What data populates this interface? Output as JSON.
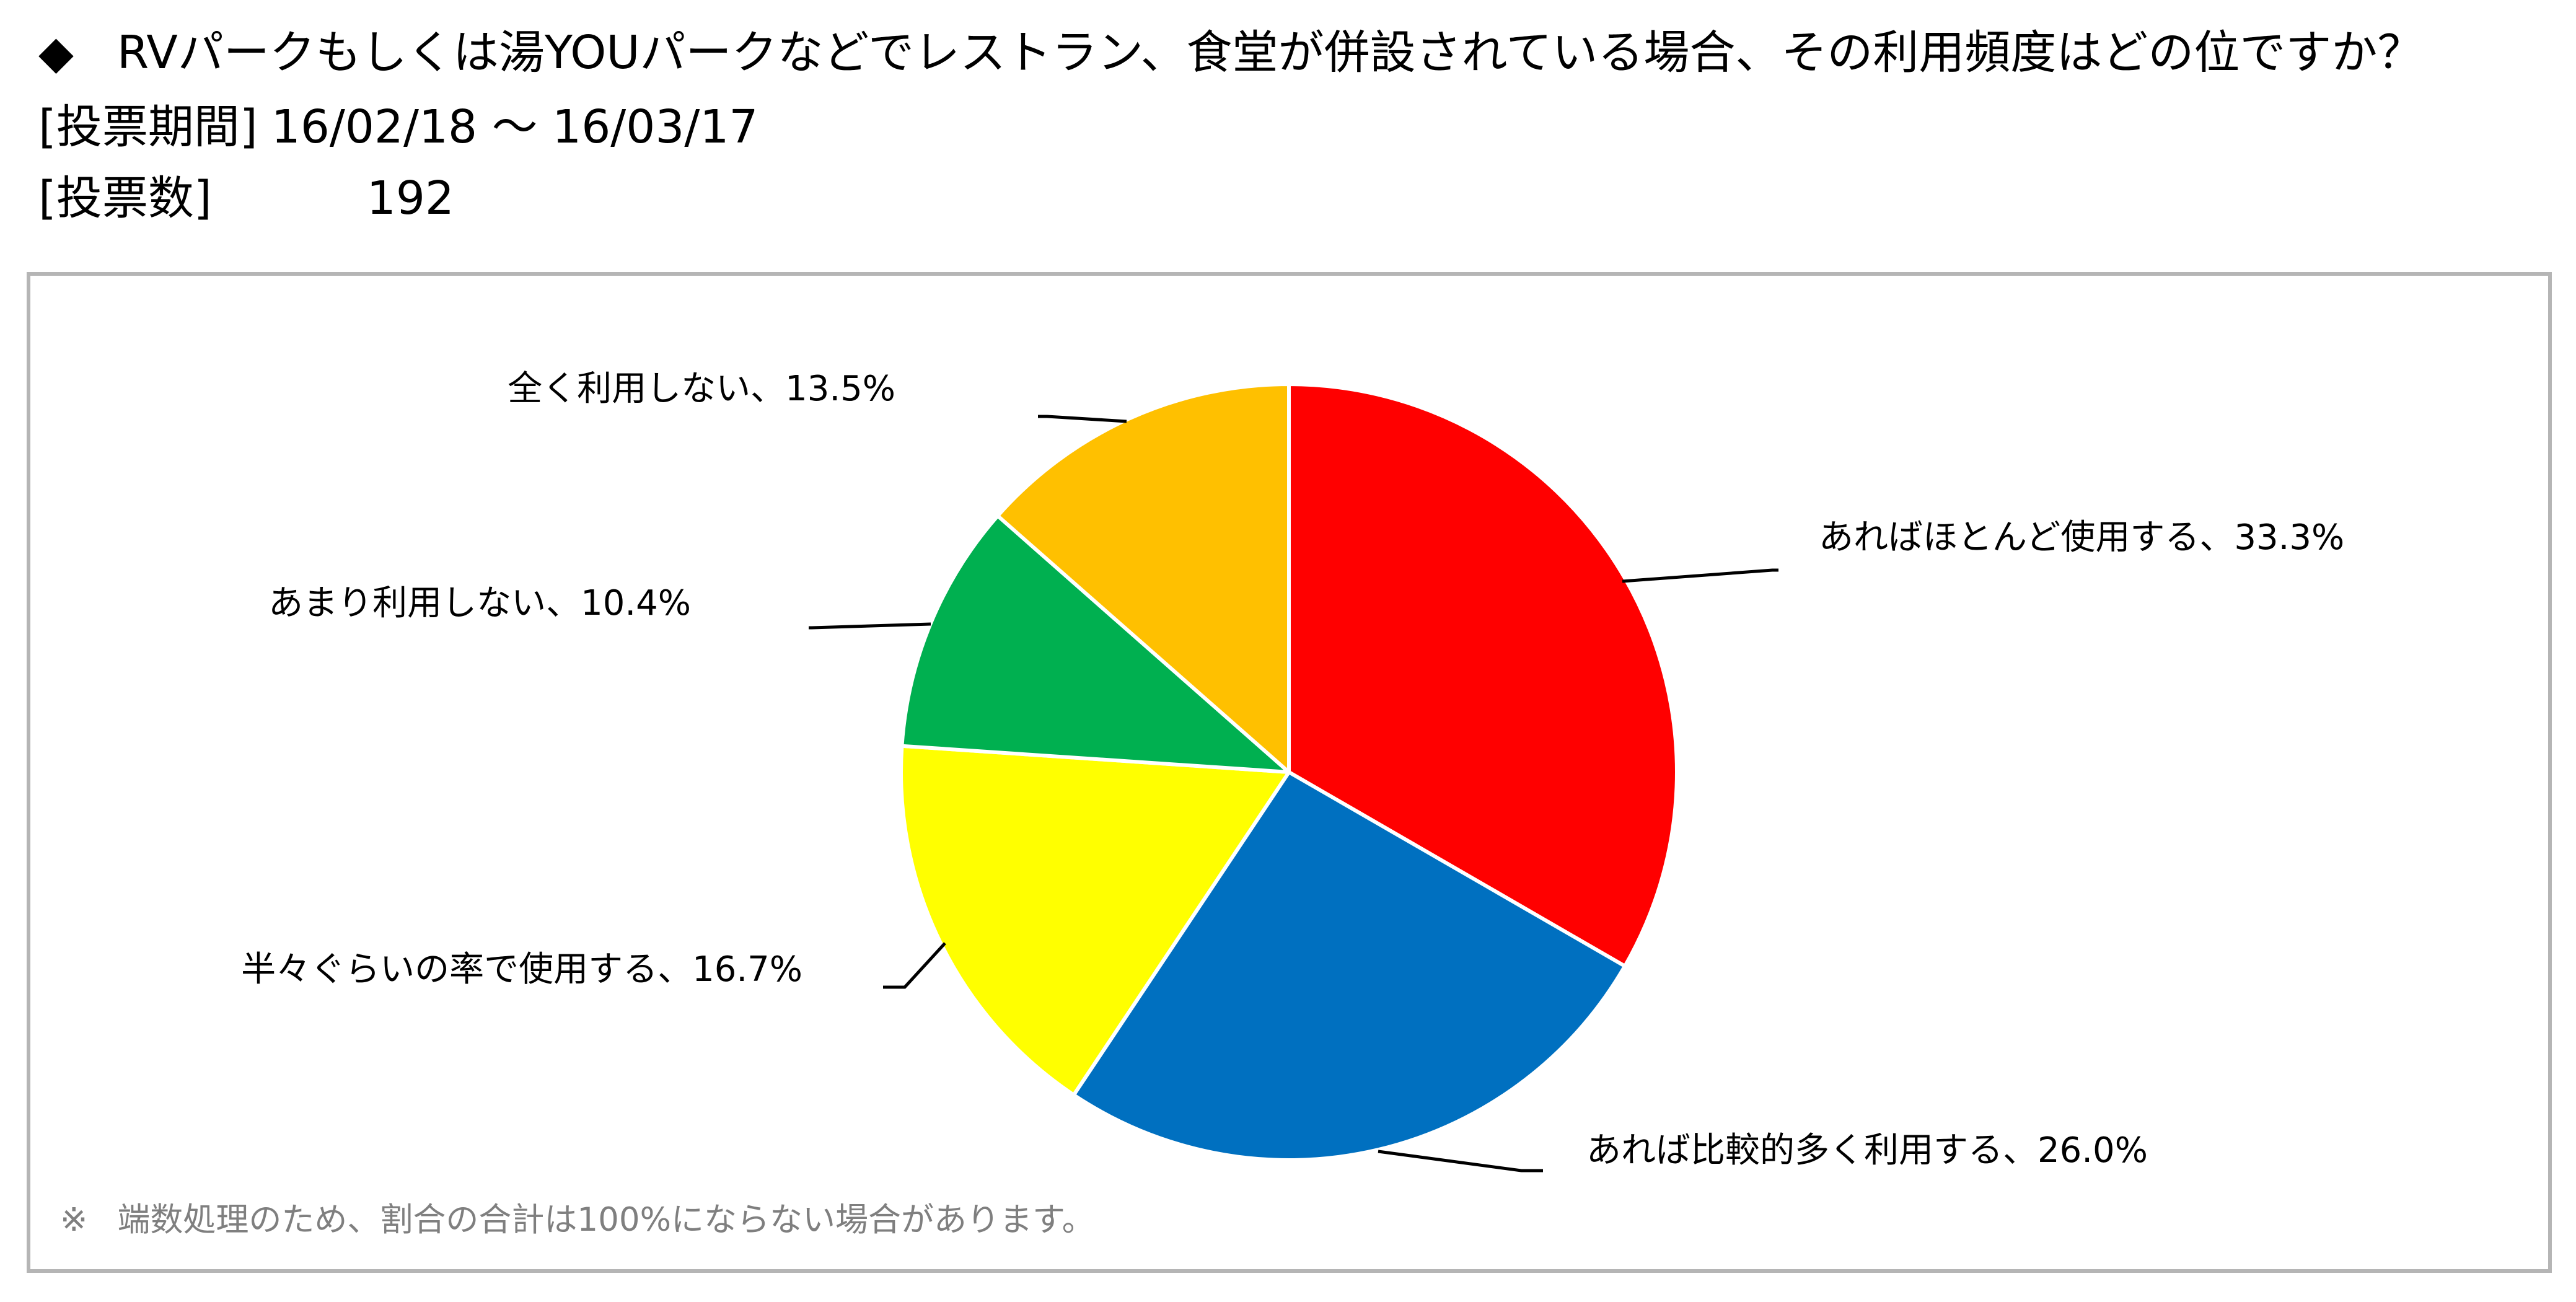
{
  "header": {
    "bullet": "◆",
    "question": "RVパークもしくは湯YOUパークなどでレストラン、食堂が併設されている場合、その利用頻度はどの位ですか？",
    "period_label": "[投票期間]",
    "period_value": "16/02/18 ～ 16/03/17",
    "votes_label": "[投票数]",
    "votes_value": "192"
  },
  "footnote": {
    "mark": "※",
    "text": "端数処理のため、割合の合計は100%にならない場合があります。"
  },
  "chart_data": {
    "type": "pie",
    "title": "",
    "start_angle_deg": 0,
    "direction": "clockwise",
    "legend": "none",
    "slices": [
      {
        "name": "あればほとんど使用する",
        "value": 33.3,
        "label": "あればほとんど使用する、33.3%",
        "color": "#ff0000"
      },
      {
        "name": "あれば比較的多く利用する",
        "value": 26.0,
        "label": "あれば比較的多く利用する、26.0%",
        "color": "#0070c0"
      },
      {
        "name": "半々ぐらいの率で使用する",
        "value": 16.7,
        "label": "半々ぐらいの率で使用する、16.7%",
        "color": "#ffff00"
      },
      {
        "name": "あまり利用しない",
        "value": 10.4,
        "label": "あまり利用しない、10.4%",
        "color": "#00b050"
      },
      {
        "name": "全く利用しない",
        "value": 13.5,
        "label": "全く利用しない、13.5%",
        "color": "#ffc000"
      }
    ],
    "slice_border_color": "#ffffff",
    "leader_line_color": "#000000"
  }
}
